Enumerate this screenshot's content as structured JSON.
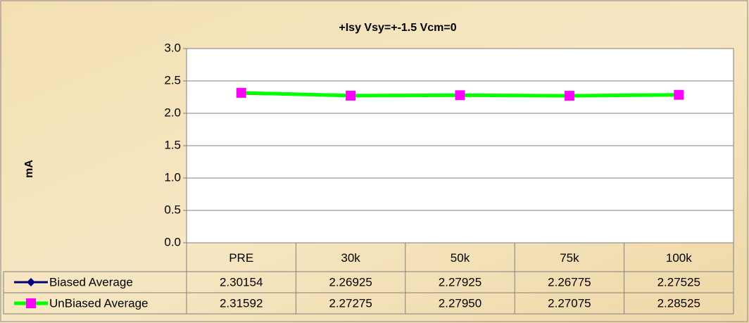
{
  "chart_data": {
    "type": "line",
    "title": "+Isy Vsy=+-1.5 Vcm=0",
    "y_label": "mA",
    "categories": [
      "PRE",
      "30k",
      "50k",
      "75k",
      "100k"
    ],
    "series": [
      {
        "name": "Biased Average",
        "color": "#000080",
        "marker": "diamond",
        "marker_color": "#000080",
        "values": [
          2.30154,
          2.26925,
          2.27925,
          2.26775,
          2.27525
        ],
        "value_labels": [
          "2.30154",
          "2.26925",
          "2.27925",
          "2.26775",
          "2.27525"
        ]
      },
      {
        "name": "UnBiased Average",
        "color": "#00ff00",
        "marker": "square",
        "marker_color": "#ff00ff",
        "values": [
          2.31592,
          2.27275,
          2.2795,
          2.27075,
          2.28525
        ],
        "value_labels": [
          "2.31592",
          "2.27275",
          "2.27950",
          "2.27075",
          "2.28525"
        ]
      }
    ],
    "ylim": [
      0,
      3
    ],
    "yticks": [
      {
        "value": 0,
        "label": "0.0"
      },
      {
        "value": 0.5,
        "label": "0.5"
      },
      {
        "value": 1,
        "label": "1.0"
      },
      {
        "value": 1.5,
        "label": "1.5"
      },
      {
        "value": 2,
        "label": "2.0"
      },
      {
        "value": 2.5,
        "label": "2.5"
      },
      {
        "value": 3,
        "label": "3.0"
      }
    ],
    "grid": true,
    "data_table": true
  }
}
